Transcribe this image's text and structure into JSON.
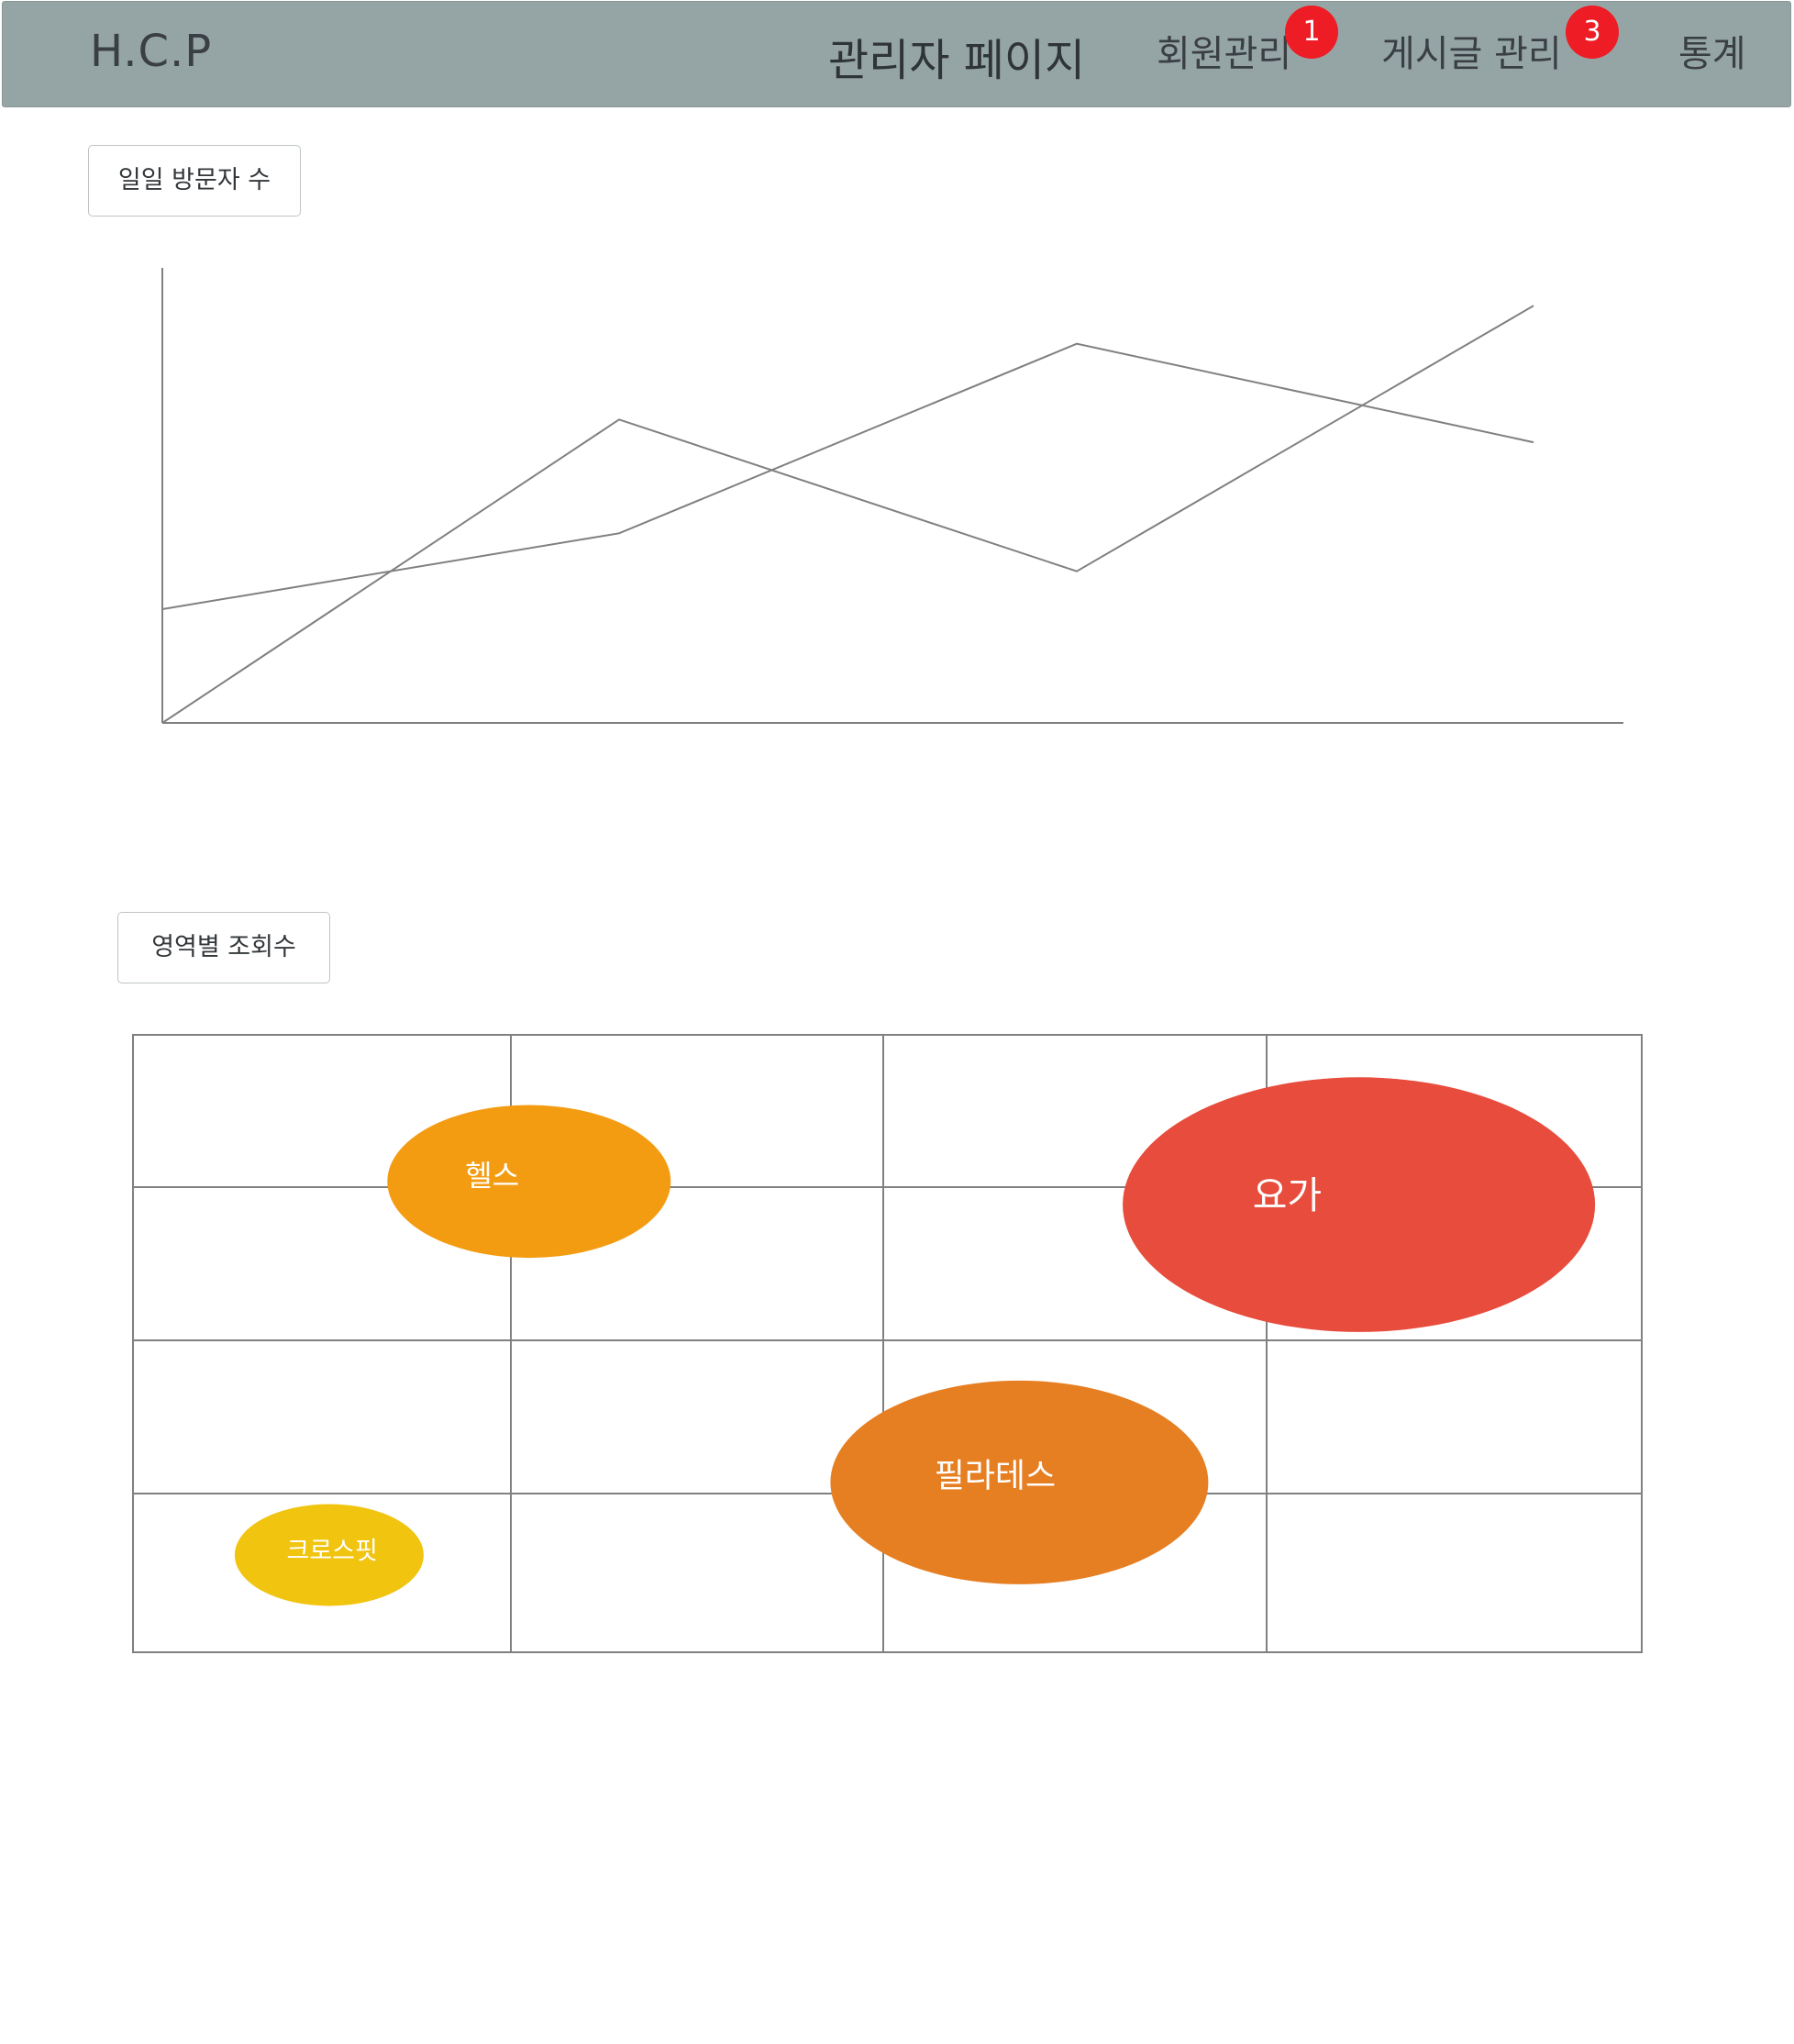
{
  "navbar": {
    "brand": "H.C.P",
    "title": "관리자 페이지",
    "links": [
      {
        "label": "회원관리",
        "badge": "1"
      },
      {
        "label": "게시글 관리",
        "badge": "3"
      },
      {
        "label": "통계",
        "badge": null
      }
    ],
    "color": "#95a5a5",
    "badge_color": "#ee1c25"
  },
  "visitors_section": {
    "button_label": "일일 방문자 수"
  },
  "category_section": {
    "button_label": "영역별 조회수"
  },
  "chart_data": [
    {
      "type": "line",
      "x": [
        1,
        2,
        3,
        4
      ],
      "series": [
        {
          "values": [
            15,
            25,
            50,
            37
          ]
        },
        {
          "values": [
            0,
            40,
            20,
            55
          ]
        }
      ],
      "ylim": [
        0,
        60
      ],
      "grid": false,
      "line_color": "#808080"
    },
    {
      "type": "scatter",
      "grid": true,
      "xlim": [
        0,
        4
      ],
      "ylim": [
        0,
        4
      ],
      "points": [
        {
          "label": "헬스",
          "x": 1.05,
          "y": 3.05,
          "size": 0.75,
          "color": "#f39c12"
        },
        {
          "label": "요가",
          "x": 3.25,
          "y": 2.9,
          "size": 1.25,
          "color": "#e74c3c"
        },
        {
          "label": "필라테스",
          "x": 2.35,
          "y": 1.1,
          "size": 1.0,
          "color": "#e67e22"
        },
        {
          "label": "크로스핏",
          "x": 0.52,
          "y": 0.63,
          "size": 0.5,
          "color": "#f1c40f"
        }
      ]
    }
  ]
}
